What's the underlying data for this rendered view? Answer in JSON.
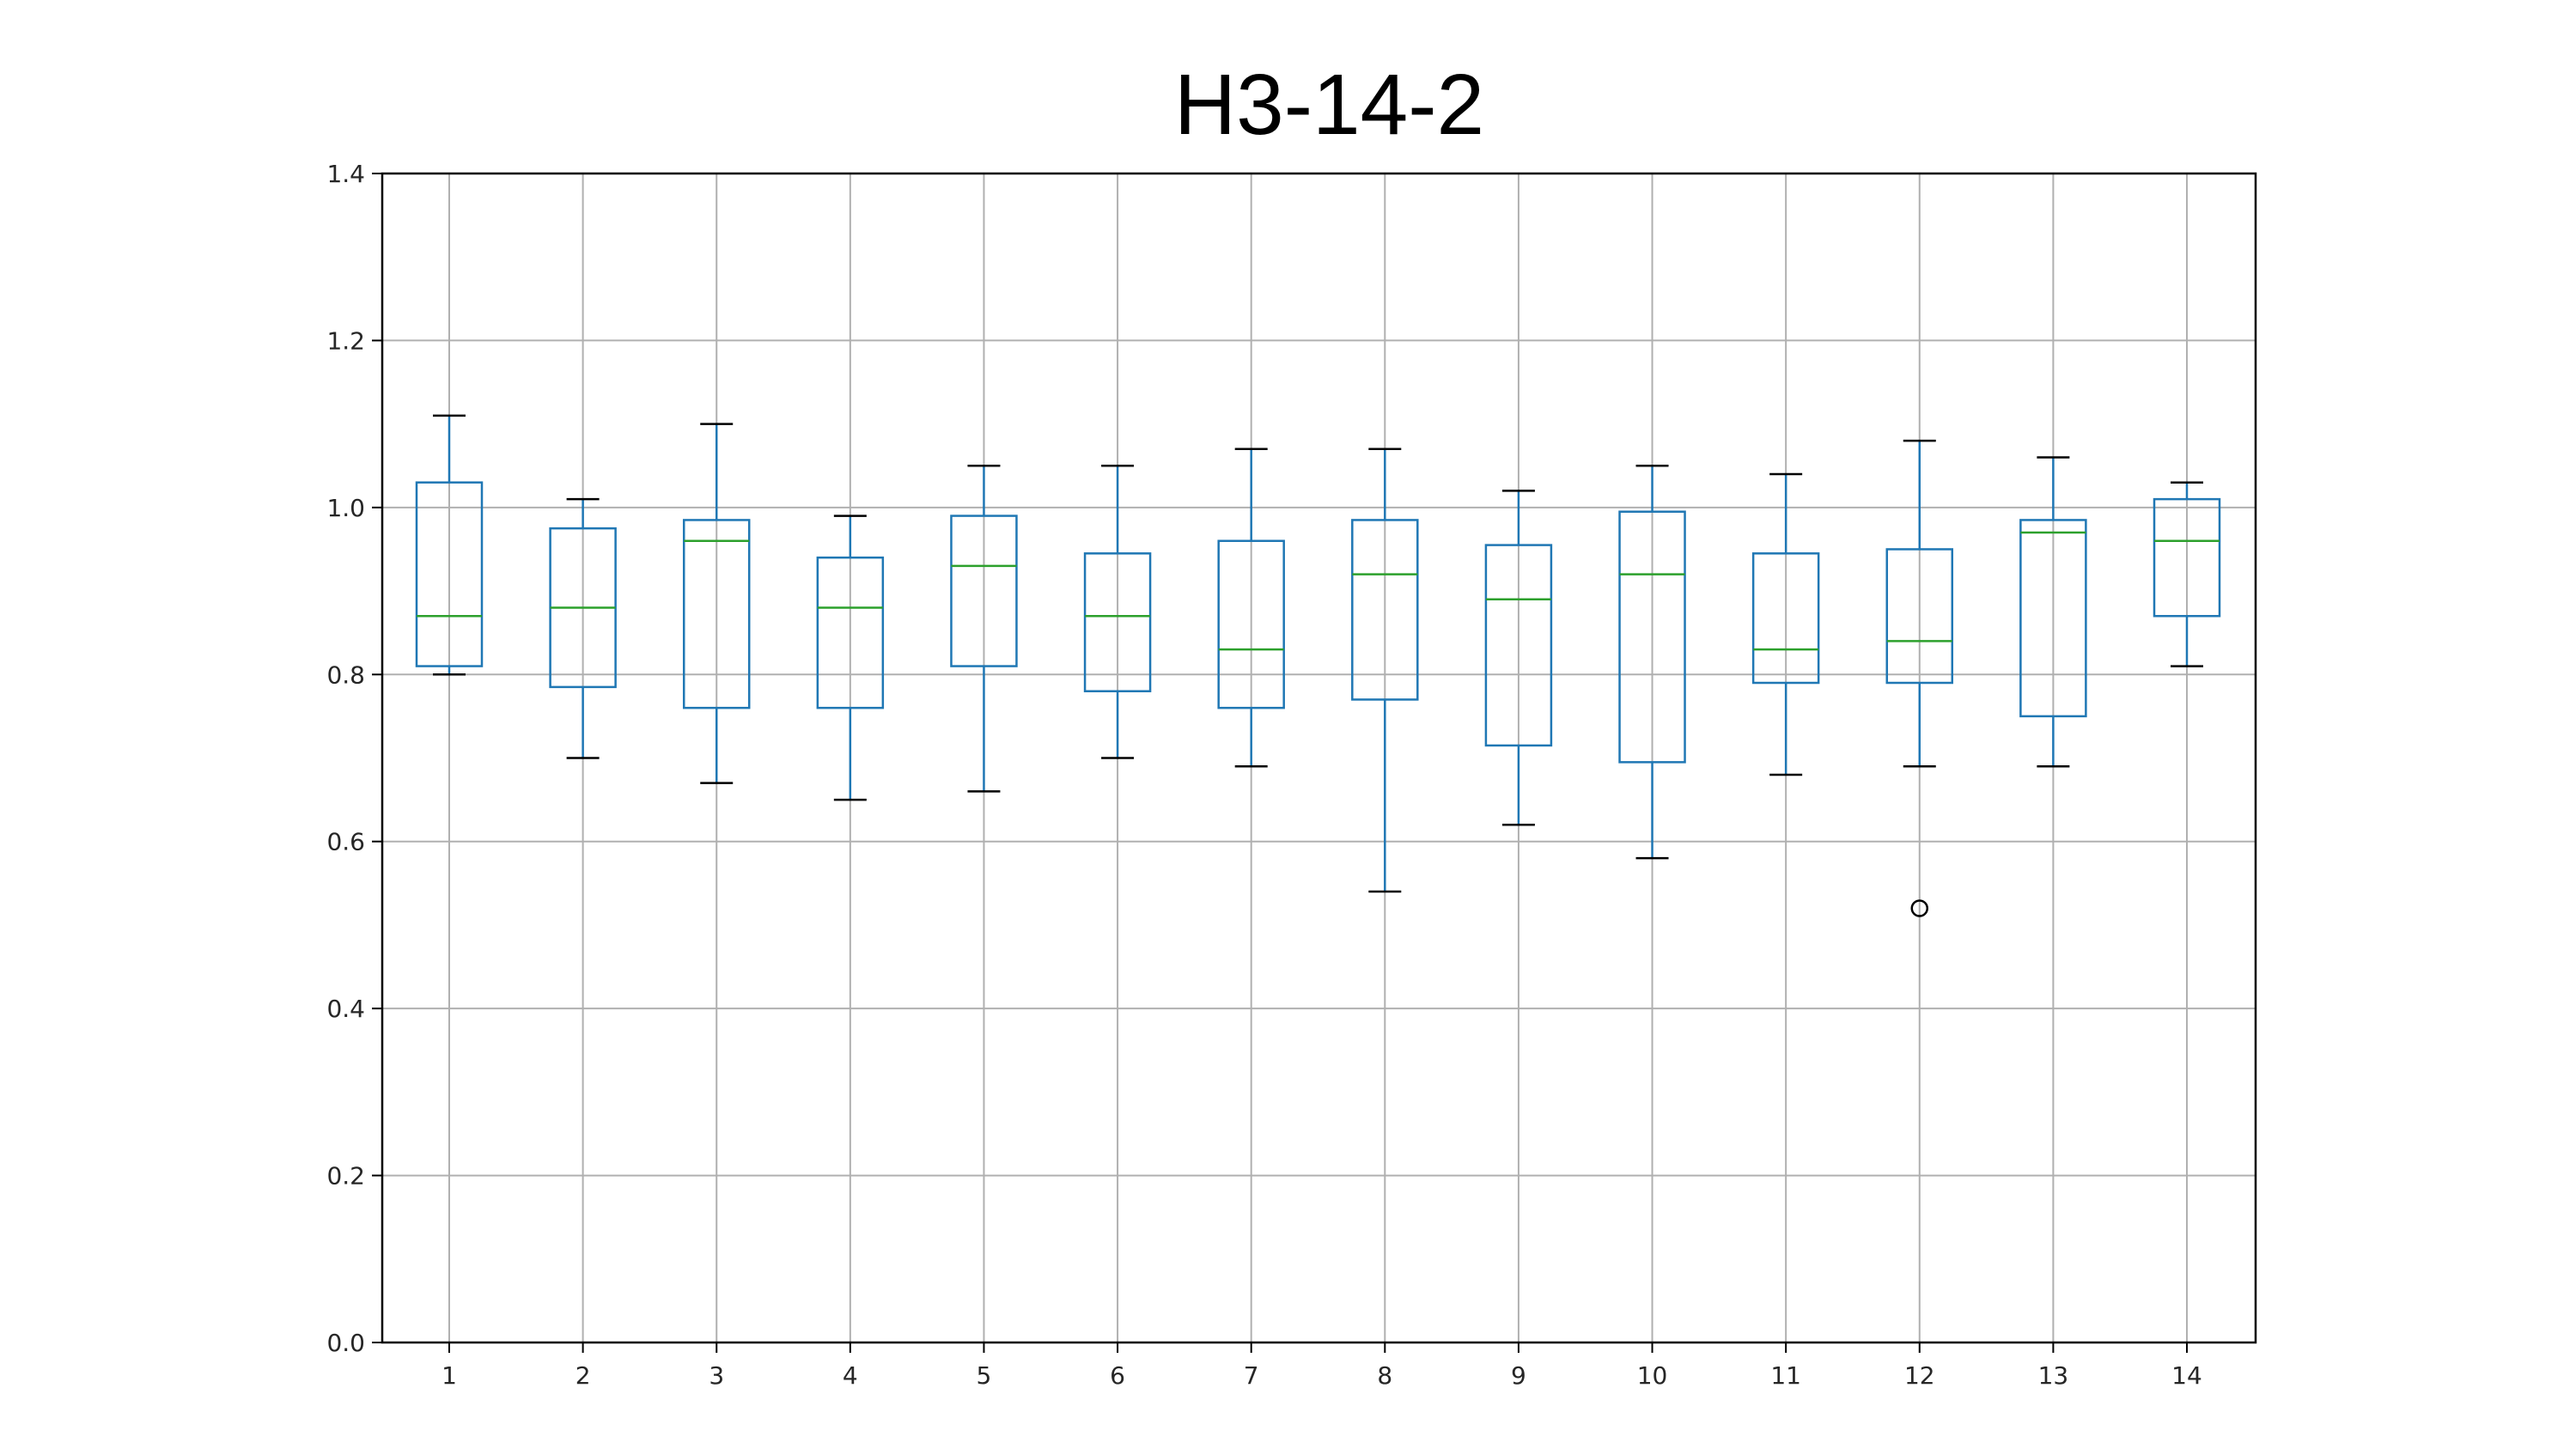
{
  "chart_data": {
    "type": "box",
    "title": "H3-14-2",
    "xlabel": "",
    "ylabel": "",
    "categories": [
      "1",
      "2",
      "3",
      "4",
      "5",
      "6",
      "7",
      "8",
      "9",
      "10",
      "11",
      "12",
      "13",
      "14"
    ],
    "ylim": [
      0.0,
      1.4
    ],
    "yticks": [
      "0.0",
      "0.2",
      "0.4",
      "0.6",
      "0.8",
      "1.0",
      "1.2",
      "1.4"
    ],
    "grid": true,
    "colors": {
      "box": "#1f77b4",
      "median": "#2ca02c",
      "whisker_cap": "#000000",
      "grid": "#b0b0b0",
      "outlier": "#000000"
    },
    "boxes": [
      {
        "label": "1",
        "whislo": 0.8,
        "q1": 0.81,
        "med": 0.87,
        "q3": 1.03,
        "whishi": 1.11,
        "fliers": []
      },
      {
        "label": "2",
        "whislo": 0.7,
        "q1": 0.785,
        "med": 0.88,
        "q3": 0.975,
        "whishi": 1.01,
        "fliers": []
      },
      {
        "label": "3",
        "whislo": 0.67,
        "q1": 0.76,
        "med": 0.96,
        "q3": 0.985,
        "whishi": 1.1,
        "fliers": []
      },
      {
        "label": "4",
        "whislo": 0.65,
        "q1": 0.76,
        "med": 0.88,
        "q3": 0.94,
        "whishi": 0.99,
        "fliers": []
      },
      {
        "label": "5",
        "whislo": 0.66,
        "q1": 0.81,
        "med": 0.93,
        "q3": 0.99,
        "whishi": 1.05,
        "fliers": []
      },
      {
        "label": "6",
        "whislo": 0.7,
        "q1": 0.78,
        "med": 0.87,
        "q3": 0.945,
        "whishi": 1.05,
        "fliers": []
      },
      {
        "label": "7",
        "whislo": 0.69,
        "q1": 0.76,
        "med": 0.83,
        "q3": 0.96,
        "whishi": 1.07,
        "fliers": []
      },
      {
        "label": "8",
        "whislo": 0.54,
        "q1": 0.77,
        "med": 0.92,
        "q3": 0.985,
        "whishi": 1.07,
        "fliers": []
      },
      {
        "label": "9",
        "whislo": 0.62,
        "q1": 0.715,
        "med": 0.89,
        "q3": 0.955,
        "whishi": 1.02,
        "fliers": []
      },
      {
        "label": "10",
        "whislo": 0.58,
        "q1": 0.695,
        "med": 0.92,
        "q3": 0.995,
        "whishi": 1.05,
        "fliers": []
      },
      {
        "label": "11",
        "whislo": 0.68,
        "q1": 0.79,
        "med": 0.83,
        "q3": 0.945,
        "whishi": 1.04,
        "fliers": []
      },
      {
        "label": "12",
        "whislo": 0.69,
        "q1": 0.79,
        "med": 0.84,
        "q3": 0.95,
        "whishi": 1.08,
        "fliers": [
          0.52
        ]
      },
      {
        "label": "13",
        "whislo": 0.69,
        "q1": 0.75,
        "med": 0.97,
        "q3": 0.985,
        "whishi": 1.06,
        "fliers": []
      },
      {
        "label": "14",
        "whislo": 0.81,
        "q1": 0.87,
        "med": 0.96,
        "q3": 1.01,
        "whishi": 1.03,
        "fliers": []
      }
    ]
  }
}
